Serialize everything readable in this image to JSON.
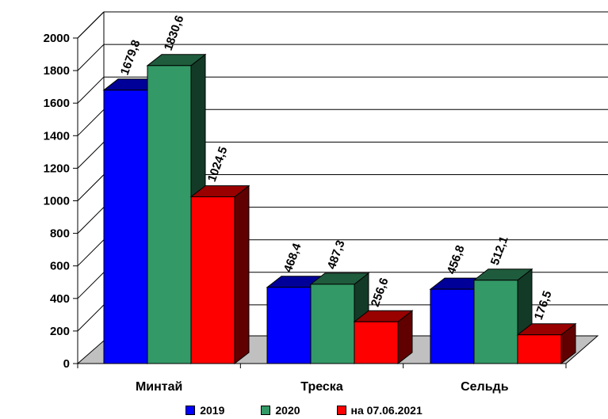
{
  "chart_data": {
    "type": "bar",
    "categories": [
      "Минтай",
      "Треска",
      "Сельдь"
    ],
    "series": [
      {
        "name": "2019",
        "values": [
          1679.8,
          468.4,
          456.8
        ],
        "labels": [
          "1679,8",
          "468,4",
          "456,8"
        ],
        "color": "#0000FF"
      },
      {
        "name": "2020",
        "values": [
          1830.6,
          487.3,
          512.1
        ],
        "labels": [
          "1830,6",
          "487,3",
          "512,1"
        ],
        "color": "#339966"
      },
      {
        "name": "на 07.06.2021",
        "values": [
          1024.5,
          256.6,
          176.5
        ],
        "labels": [
          "1024,5",
          "256,6",
          "176,5"
        ],
        "color": "#FF0000"
      }
    ],
    "y_ticks": [
      "0",
      "200",
      "400",
      "600",
      "800",
      "1000",
      "1200",
      "1400",
      "1600",
      "1800",
      "2000"
    ],
    "ylim": [
      0,
      2000
    ],
    "grid": true,
    "three_d": true,
    "legend_position": "bottom",
    "floor_color": "#C0C0C0"
  }
}
